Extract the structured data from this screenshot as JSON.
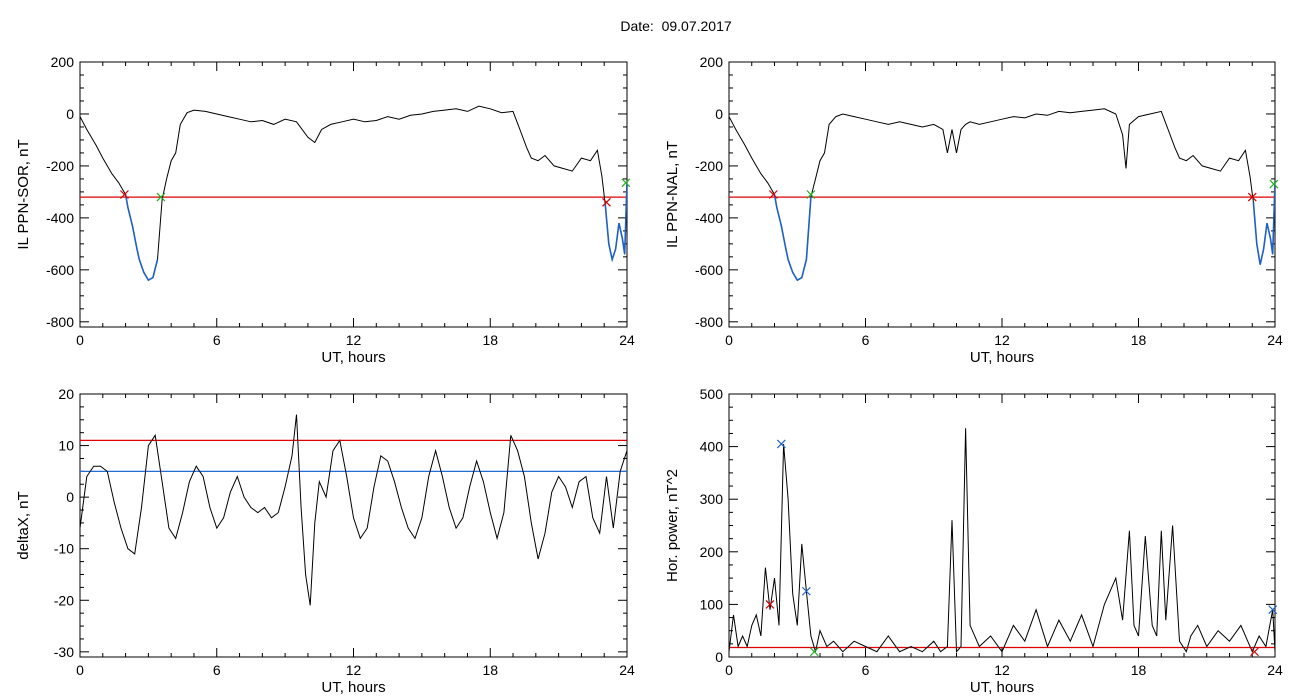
{
  "header": {
    "date_label": "Date:",
    "date_value": "09.07.2017"
  },
  "colors": {
    "trace": "#000000",
    "threshold_red": "#e00000",
    "threshold_blue": "#1f6fd6",
    "highlight_blue": "#1f5fc8",
    "marker_red": "#d00000",
    "marker_green": "#20b020",
    "marker_blue": "#1f5fc8"
  },
  "chart_data": [
    {
      "id": "il-sor",
      "type": "line",
      "ylabel": "IL PPN-SOR, nT",
      "xlabel": "UT, hours",
      "xlim": [
        0,
        24
      ],
      "ylim": [
        -820,
        200
      ],
      "xticks": [
        0,
        6,
        12,
        18,
        24
      ],
      "yticks": [
        200,
        0,
        -200,
        -400,
        -600,
        -800
      ],
      "threshold": {
        "value": -320,
        "color": "red"
      },
      "highlight_ranges": [
        [
          2.0,
          3.5
        ],
        [
          23.0,
          24.0
        ]
      ],
      "markers": [
        {
          "x": 1.95,
          "y": -310,
          "color": "red"
        },
        {
          "x": 3.55,
          "y": -320,
          "color": "green"
        },
        {
          "x": 23.1,
          "y": -340,
          "color": "red"
        },
        {
          "x": 23.95,
          "y": -265,
          "color": "green"
        }
      ],
      "x": [
        0,
        0.3,
        0.7,
        1.0,
        1.4,
        1.7,
        2.0,
        2.1,
        2.3,
        2.5,
        2.6,
        2.8,
        3.0,
        3.2,
        3.4,
        3.6,
        3.8,
        4.0,
        4.2,
        4.4,
        4.7,
        5.0,
        5.5,
        6.0,
        6.5,
        7.0,
        7.5,
        8.0,
        8.5,
        9.0,
        9.5,
        10.0,
        10.3,
        10.6,
        11.0,
        11.5,
        12.0,
        12.5,
        13.0,
        13.5,
        14.0,
        14.5,
        15.0,
        15.5,
        16.0,
        16.5,
        17.0,
        17.5,
        18.0,
        18.5,
        19.0,
        19.3,
        19.6,
        19.8,
        20.1,
        20.4,
        20.8,
        21.2,
        21.6,
        22.0,
        22.4,
        22.7,
        22.9,
        23.05,
        23.2,
        23.35,
        23.5,
        23.65,
        23.8,
        23.9,
        24.0
      ],
      "y": [
        -10,
        -60,
        -120,
        -170,
        -230,
        -265,
        -310,
        -360,
        -430,
        -520,
        -560,
        -610,
        -640,
        -630,
        -560,
        -330,
        -250,
        -180,
        -150,
        -40,
        5,
        15,
        10,
        0,
        -10,
        -20,
        -30,
        -25,
        -40,
        -20,
        -30,
        -90,
        -110,
        -60,
        -40,
        -30,
        -20,
        -30,
        -25,
        -10,
        -20,
        -5,
        0,
        10,
        15,
        20,
        10,
        30,
        20,
        5,
        10,
        -60,
        -130,
        -170,
        -180,
        -160,
        -200,
        -210,
        -220,
        -170,
        -180,
        -140,
        -240,
        -350,
        -500,
        -560,
        -520,
        -420,
        -480,
        -540,
        -260
      ]
    },
    {
      "id": "il-nal",
      "type": "line",
      "ylabel": "IL PPN-NAL, nT",
      "xlabel": "UT, hours",
      "xlim": [
        0,
        24
      ],
      "ylim": [
        -820,
        200
      ],
      "xticks": [
        0,
        6,
        12,
        18,
        24
      ],
      "yticks": [
        200,
        0,
        -200,
        -400,
        -600,
        -800
      ],
      "threshold": {
        "value": -320,
        "color": "red"
      },
      "highlight_ranges": [
        [
          2.0,
          3.6
        ],
        [
          23.0,
          24.0
        ]
      ],
      "markers": [
        {
          "x": 1.95,
          "y": -310,
          "color": "red"
        },
        {
          "x": 3.6,
          "y": -310,
          "color": "green"
        },
        {
          "x": 23.0,
          "y": -320,
          "color": "red"
        },
        {
          "x": 23.95,
          "y": -270,
          "color": "green"
        }
      ],
      "x": [
        0,
        0.3,
        0.7,
        1.0,
        1.4,
        1.7,
        2.0,
        2.1,
        2.3,
        2.5,
        2.6,
        2.8,
        3.0,
        3.2,
        3.4,
        3.6,
        3.8,
        4.0,
        4.2,
        4.4,
        4.7,
        5.0,
        5.5,
        6.0,
        6.5,
        7.0,
        7.5,
        8.0,
        8.5,
        9.0,
        9.4,
        9.6,
        9.8,
        10.0,
        10.2,
        10.4,
        10.6,
        11.0,
        11.5,
        12.0,
        12.5,
        13.0,
        13.5,
        14.0,
        14.5,
        15.0,
        15.5,
        16.0,
        16.5,
        17.0,
        17.3,
        17.45,
        17.6,
        18.0,
        18.5,
        19.0,
        19.3,
        19.6,
        19.8,
        20.1,
        20.4,
        20.8,
        21.2,
        21.6,
        22.0,
        22.4,
        22.7,
        22.9,
        23.05,
        23.2,
        23.35,
        23.5,
        23.65,
        23.8,
        23.9,
        24.0
      ],
      "y": [
        -10,
        -60,
        -120,
        -170,
        -230,
        -265,
        -310,
        -360,
        -430,
        -520,
        -560,
        -610,
        -640,
        -630,
        -560,
        -320,
        -250,
        -180,
        -150,
        -40,
        -10,
        0,
        -10,
        -20,
        -30,
        -40,
        -30,
        -40,
        -50,
        -40,
        -60,
        -150,
        -60,
        -150,
        -60,
        -40,
        -30,
        -40,
        -30,
        -20,
        -10,
        -15,
        0,
        -5,
        10,
        5,
        10,
        15,
        20,
        0,
        -80,
        -210,
        -40,
        -10,
        0,
        10,
        -60,
        -130,
        -170,
        -180,
        -160,
        -200,
        -210,
        -220,
        -170,
        -180,
        -140,
        -240,
        -340,
        -500,
        -580,
        -520,
        -420,
        -480,
        -540,
        -260
      ]
    },
    {
      "id": "deltax",
      "type": "line",
      "ylabel": "deltaX, nT",
      "xlabel": "UT, hours",
      "xlim": [
        0,
        24
      ],
      "ylim": [
        -31,
        20
      ],
      "xticks": [
        0,
        6,
        12,
        18,
        24
      ],
      "yticks": [
        20,
        10,
        0,
        -10,
        -20,
        -30
      ],
      "thresholds": [
        {
          "value": 11,
          "color": "red"
        },
        {
          "value": 5,
          "color": "blue"
        }
      ],
      "x": [
        0,
        0.3,
        0.6,
        0.9,
        1.2,
        1.5,
        1.8,
        2.1,
        2.4,
        2.7,
        3.0,
        3.3,
        3.6,
        3.9,
        4.2,
        4.5,
        4.8,
        5.1,
        5.4,
        5.7,
        6.0,
        6.3,
        6.6,
        6.9,
        7.2,
        7.5,
        7.8,
        8.1,
        8.4,
        8.7,
        9.0,
        9.3,
        9.5,
        9.7,
        9.9,
        10.1,
        10.3,
        10.5,
        10.8,
        11.1,
        11.4,
        11.7,
        12.0,
        12.3,
        12.6,
        12.9,
        13.2,
        13.5,
        13.8,
        14.1,
        14.4,
        14.7,
        15.0,
        15.3,
        15.6,
        15.9,
        16.2,
        16.5,
        16.8,
        17.1,
        17.4,
        17.7,
        18.0,
        18.3,
        18.6,
        18.9,
        19.2,
        19.5,
        19.8,
        20.1,
        20.4,
        20.7,
        21.0,
        21.3,
        21.6,
        21.9,
        22.2,
        22.5,
        22.8,
        23.1,
        23.4,
        23.7,
        24.0
      ],
      "y": [
        -6,
        4,
        6,
        6,
        5,
        -1,
        -6,
        -10,
        -11,
        -2,
        10,
        12,
        3,
        -6,
        -8,
        -3,
        3,
        6,
        4,
        -2,
        -6,
        -4,
        1,
        4,
        0,
        -2,
        -3,
        -2,
        -4,
        -3,
        2,
        8,
        16,
        -2,
        -15,
        -21,
        -5,
        3,
        0,
        9,
        11,
        4,
        -4,
        -8,
        -6,
        2,
        8,
        7,
        3,
        -2,
        -6,
        -8,
        -4,
        4,
        9,
        4,
        -2,
        -6,
        -4,
        2,
        7,
        3,
        -3,
        -8,
        -3,
        12,
        9,
        4,
        -5,
        -12,
        -7,
        1,
        4,
        2,
        -2,
        3,
        4,
        -4,
        -7,
        4,
        -6,
        5,
        9
      ]
    },
    {
      "id": "hor-power",
      "type": "line",
      "ylabel": "Hor. power, nT^2",
      "xlabel": "UT, hours",
      "xlim": [
        0,
        24
      ],
      "ylim": [
        0,
        500
      ],
      "xticks": [
        0,
        6,
        12,
        18,
        24
      ],
      "yticks": [
        500,
        400,
        300,
        200,
        100,
        0
      ],
      "threshold": {
        "value": 18,
        "color": "red"
      },
      "markers": [
        {
          "x": 2.3,
          "y": 405,
          "color": "blue"
        },
        {
          "x": 3.4,
          "y": 125,
          "color": "blue"
        },
        {
          "x": 1.8,
          "y": 100,
          "color": "red"
        },
        {
          "x": 3.75,
          "y": 10,
          "color": "green"
        },
        {
          "x": 23.1,
          "y": 10,
          "color": "red"
        },
        {
          "x": 23.9,
          "y": 90,
          "color": "blue"
        }
      ],
      "x": [
        0,
        0.2,
        0.4,
        0.6,
        0.8,
        1.0,
        1.2,
        1.4,
        1.6,
        1.8,
        2.0,
        2.2,
        2.4,
        2.6,
        2.8,
        3.0,
        3.2,
        3.4,
        3.6,
        3.8,
        4.0,
        4.3,
        4.6,
        5.0,
        5.5,
        6.0,
        6.5,
        7.0,
        7.5,
        8.0,
        8.5,
        9.0,
        9.3,
        9.6,
        9.8,
        10.0,
        10.2,
        10.4,
        10.6,
        11.0,
        11.5,
        12.0,
        12.5,
        13.0,
        13.5,
        14.0,
        14.5,
        15.0,
        15.5,
        16.0,
        16.5,
        17.0,
        17.3,
        17.6,
        17.8,
        18.0,
        18.3,
        18.6,
        18.8,
        19.0,
        19.2,
        19.5,
        19.8,
        20.1,
        20.3,
        20.6,
        21.0,
        21.5,
        22.0,
        22.5,
        23.0,
        23.3,
        23.6,
        23.9,
        24.0
      ],
      "y": [
        10,
        80,
        20,
        40,
        20,
        60,
        80,
        40,
        170,
        90,
        150,
        60,
        405,
        300,
        120,
        60,
        215,
        125,
        40,
        10,
        50,
        20,
        30,
        10,
        30,
        20,
        10,
        40,
        10,
        20,
        10,
        30,
        10,
        20,
        260,
        10,
        20,
        435,
        60,
        20,
        40,
        10,
        60,
        30,
        90,
        20,
        70,
        30,
        80,
        20,
        100,
        150,
        70,
        240,
        60,
        40,
        230,
        60,
        40,
        240,
        70,
        250,
        30,
        10,
        40,
        60,
        20,
        50,
        30,
        60,
        10,
        40,
        20,
        90,
        10
      ]
    }
  ]
}
